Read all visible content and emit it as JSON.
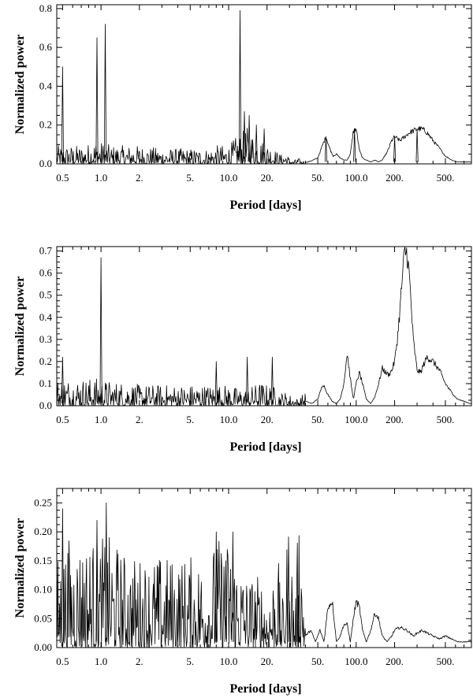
{
  "chart_data": [
    {
      "type": "line",
      "title": "",
      "xlabel": "Period [days]",
      "ylabel": "Normalized power",
      "x_scale": "log",
      "xlim": [
        0.45,
        800
      ],
      "ylim": [
        0,
        0.82
      ],
      "x_ticks": [
        {
          "v": 0.5,
          "label": "0.5"
        },
        {
          "v": 1,
          "label": "1.0"
        },
        {
          "v": 2,
          "label": "2."
        },
        {
          "v": 5,
          "label": "5."
        },
        {
          "v": 10,
          "label": "10.0"
        },
        {
          "v": 20,
          "label": "20."
        },
        {
          "v": 50,
          "label": "50."
        },
        {
          "v": 100,
          "label": "100.0"
        },
        {
          "v": 200,
          "label": "200."
        },
        {
          "v": 500,
          "label": "500."
        }
      ],
      "y_ticks": [
        {
          "v": 0,
          "label": "0.0"
        },
        {
          "v": 0.2,
          "label": "0.2"
        },
        {
          "v": 0.4,
          "label": "0.4"
        },
        {
          "v": 0.6,
          "label": "0.6"
        },
        {
          "v": 0.8,
          "label": "0.8"
        }
      ],
      "peaks": [
        [
          0.5,
          0.5
        ],
        [
          0.93,
          0.65
        ],
        [
          1.08,
          0.72
        ],
        [
          12.3,
          0.79
        ],
        [
          13.3,
          0.27
        ],
        [
          14.5,
          0.25
        ],
        [
          16.5,
          0.2
        ],
        [
          19,
          0.18
        ],
        [
          58,
          0.14
        ],
        [
          97,
          0.18
        ],
        [
          200,
          0.14
        ],
        [
          300,
          0.18
        ]
      ],
      "series": [
        {
          "x": [
            0.45,
            0.52,
            0.6,
            0.75,
            0.9,
            1.2,
            1.6,
            2,
            3,
            4,
            5,
            6,
            7,
            8,
            9,
            10,
            11,
            12.5,
            14,
            16,
            18,
            20,
            22,
            24,
            26,
            28,
            30,
            32,
            35,
            38,
            42,
            46,
            50,
            54,
            58,
            62,
            66,
            70,
            75,
            80,
            85,
            90,
            95,
            100,
            106,
            112,
            120,
            130,
            140,
            150,
            160,
            175,
            190,
            200,
            220,
            240,
            260,
            280,
            300,
            330,
            360,
            400,
            450,
            500,
            560,
            620,
            700,
            780
          ],
          "y": [
            0.03,
            0.03,
            0.03,
            0.03,
            0.04,
            0.03,
            0.03,
            0.03,
            0.025,
            0.025,
            0.025,
            0.025,
            0.025,
            0.03,
            0.03,
            0.03,
            0.04,
            0.05,
            0.06,
            0.05,
            0.04,
            0.035,
            0.03,
            0.02,
            0.015,
            0.02,
            0.01,
            0.005,
            0.01,
            0.005,
            0.01,
            0.02,
            0.03,
            0.09,
            0.14,
            0.08,
            0.04,
            0.05,
            0.03,
            0.02,
            0.02,
            0.05,
            0.17,
            0.18,
            0.07,
            0.03,
            0.02,
            0.01,
            0.02,
            0.01,
            0.02,
            0.06,
            0.12,
            0.14,
            0.12,
            0.14,
            0.16,
            0.17,
            0.18,
            0.18,
            0.16,
            0.12,
            0.08,
            0.04,
            0.02,
            0.01,
            0.01,
            0.01
          ]
        }
      ]
    },
    {
      "type": "line",
      "title": "",
      "xlabel": "Period [days]",
      "ylabel": "Normalized power",
      "x_scale": "log",
      "xlim": [
        0.45,
        800
      ],
      "ylim": [
        0,
        0.72
      ],
      "x_ticks": [
        {
          "v": 0.5,
          "label": "0.5"
        },
        {
          "v": 1,
          "label": "1.0"
        },
        {
          "v": 2,
          "label": "2."
        },
        {
          "v": 5,
          "label": "5."
        },
        {
          "v": 10,
          "label": "10.0"
        },
        {
          "v": 20,
          "label": "20."
        },
        {
          "v": 50,
          "label": "50."
        },
        {
          "v": 100,
          "label": "100.0"
        },
        {
          "v": 200,
          "label": "200."
        },
        {
          "v": 500,
          "label": "500."
        }
      ],
      "y_ticks": [
        {
          "v": 0,
          "label": "0.0"
        },
        {
          "v": 0.1,
          "label": "0.1"
        },
        {
          "v": 0.2,
          "label": "0.2"
        },
        {
          "v": 0.3,
          "label": "0.3"
        },
        {
          "v": 0.4,
          "label": "0.4"
        },
        {
          "v": 0.5,
          "label": "0.5"
        },
        {
          "v": 0.6,
          "label": "0.6"
        },
        {
          "v": 0.7,
          "label": "0.7"
        }
      ],
      "peaks": [
        [
          1.0,
          0.67
        ],
        [
          0.5,
          0.22
        ],
        [
          8,
          0.2
        ],
        [
          14,
          0.22
        ],
        [
          22,
          0.22
        ]
      ],
      "series": [
        {
          "x": [
            0.45,
            0.55,
            0.7,
            0.9,
            1.2,
            1.6,
            2,
            3,
            4,
            5,
            6,
            7,
            8,
            9,
            10,
            12,
            14,
            16,
            18,
            20,
            22,
            25,
            28,
            31,
            35,
            40,
            45,
            50,
            55,
            60,
            65,
            70,
            75,
            80,
            85,
            90,
            95,
            100,
            106,
            112,
            120,
            130,
            140,
            150,
            160,
            170,
            180,
            190,
            200,
            210,
            220,
            230,
            240,
            250,
            260,
            270,
            280,
            300,
            320,
            340,
            360,
            380,
            400,
            450,
            500,
            560,
            620,
            700,
            780
          ],
          "y": [
            0.04,
            0.04,
            0.04,
            0.04,
            0.035,
            0.035,
            0.03,
            0.03,
            0.03,
            0.03,
            0.03,
            0.03,
            0.03,
            0.03,
            0.03,
            0.025,
            0.025,
            0.03,
            0.035,
            0.03,
            0.03,
            0.02,
            0.02,
            0.015,
            0.01,
            0.02,
            0.01,
            0.03,
            0.1,
            0.05,
            0.02,
            0.01,
            0.03,
            0.1,
            0.24,
            0.12,
            0.03,
            0.1,
            0.15,
            0.1,
            0.03,
            0.01,
            0.04,
            0.1,
            0.17,
            0.15,
            0.14,
            0.16,
            0.2,
            0.3,
            0.43,
            0.58,
            0.7,
            0.69,
            0.6,
            0.45,
            0.3,
            0.16,
            0.15,
            0.19,
            0.22,
            0.21,
            0.2,
            0.16,
            0.1,
            0.06,
            0.03,
            0.02,
            0.01
          ]
        }
      ]
    },
    {
      "type": "line",
      "title": "",
      "xlabel": "Period [days]",
      "ylabel": "Normalized power",
      "x_scale": "log",
      "xlim": [
        0.45,
        800
      ],
      "ylim": [
        0,
        0.275
      ],
      "x_ticks": [
        {
          "v": 0.5,
          "label": "0.5"
        },
        {
          "v": 1,
          "label": "1.0"
        },
        {
          "v": 2,
          "label": "2."
        },
        {
          "v": 5,
          "label": "5."
        },
        {
          "v": 10,
          "label": "10.0"
        },
        {
          "v": 20,
          "label": "20."
        },
        {
          "v": 50,
          "label": "50."
        },
        {
          "v": 100,
          "label": "100.0"
        },
        {
          "v": 200,
          "label": "200."
        },
        {
          "v": 500,
          "label": "500."
        }
      ],
      "y_ticks": [
        {
          "v": 0,
          "label": "0.00"
        },
        {
          "v": 0.05,
          "label": "0.05"
        },
        {
          "v": 0.1,
          "label": "0.10"
        },
        {
          "v": 0.15,
          "label": "0.15"
        },
        {
          "v": 0.2,
          "label": "0.20"
        },
        {
          "v": 0.25,
          "label": "0.25"
        }
      ],
      "peaks": [
        [
          0.5,
          0.24
        ],
        [
          0.93,
          0.22
        ],
        [
          1.1,
          0.25
        ],
        [
          8,
          0.2
        ],
        [
          10.8,
          0.2
        ],
        [
          9.5,
          0.15
        ],
        [
          30,
          0.08
        ],
        [
          35,
          0.09
        ]
      ],
      "series": [
        {
          "x": [
            0.45,
            0.55,
            0.7,
            0.9,
            1.2,
            1.6,
            2,
            3,
            4,
            5,
            6,
            7,
            8,
            9,
            10,
            12,
            14,
            16,
            18,
            20,
            22,
            24,
            26,
            28,
            30,
            33,
            36,
            40,
            44,
            48,
            52,
            56,
            60,
            65,
            70,
            75,
            80,
            85,
            90,
            95,
            100,
            106,
            112,
            120,
            130,
            140,
            150,
            160,
            175,
            190,
            200,
            220,
            250,
            280,
            300,
            330,
            360,
            400,
            450,
            500,
            560,
            620,
            700,
            780
          ],
          "y": [
            0.05,
            0.06,
            0.06,
            0.06,
            0.06,
            0.05,
            0.05,
            0.05,
            0.05,
            0.05,
            0.05,
            0.05,
            0.06,
            0.06,
            0.06,
            0.05,
            0.04,
            0.04,
            0.04,
            0.03,
            0.04,
            0.06,
            0.02,
            0.05,
            0.08,
            0.02,
            0.09,
            0.02,
            0.03,
            0.01,
            0.03,
            0.01,
            0.07,
            0.08,
            0.01,
            0.02,
            0.04,
            0.04,
            0.01,
            0.05,
            0.08,
            0.07,
            0.03,
            0.01,
            0.03,
            0.06,
            0.05,
            0.02,
            0.01,
            0.02,
            0.03,
            0.035,
            0.03,
            0.02,
            0.025,
            0.03,
            0.025,
            0.02,
            0.015,
            0.02,
            0.015,
            0.01,
            0.01,
            0.01
          ]
        }
      ]
    }
  ]
}
